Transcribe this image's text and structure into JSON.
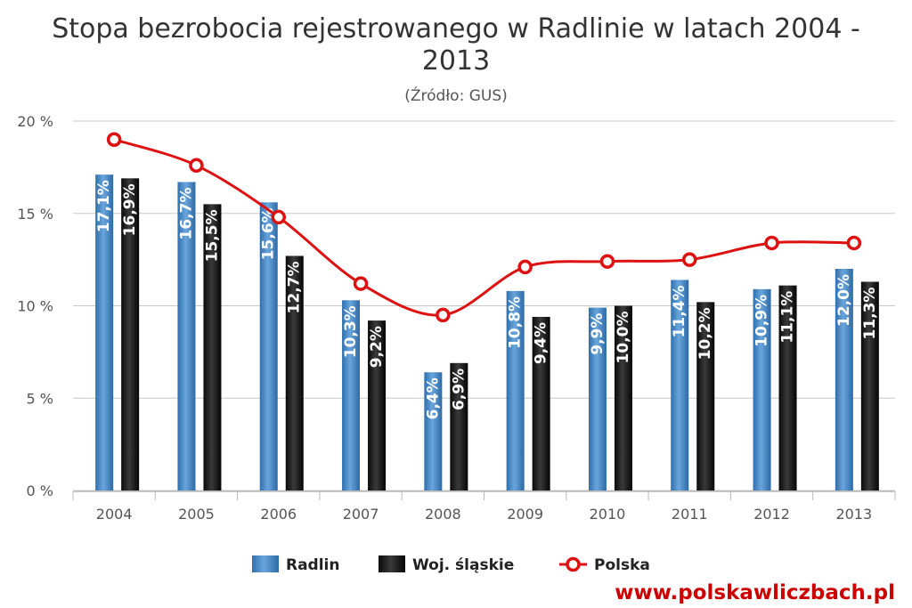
{
  "chart_data": {
    "type": "bar",
    "title_line1": "Stopa bezrobocia rejestrowanego w Radlinie w latach 2004 -",
    "title_line2": "2013",
    "subtitle": "(Źródło: GUS)",
    "categories": [
      "2004",
      "2005",
      "2006",
      "2007",
      "2008",
      "2009",
      "2010",
      "2011",
      "2012",
      "2013"
    ],
    "ylim": [
      0,
      20
    ],
    "yticks": [
      {
        "value": 0,
        "label": "0 %"
      },
      {
        "value": 5,
        "label": "5 %"
      },
      {
        "value": 10,
        "label": "10 %"
      },
      {
        "value": 15,
        "label": "15 %"
      },
      {
        "value": 20,
        "label": "20 %"
      }
    ],
    "grid": true,
    "legend_position": "bottom-center",
    "series": [
      {
        "name": "Radlin",
        "kind": "bar",
        "color": "#4a88c7",
        "values": [
          17.1,
          16.7,
          15.6,
          10.3,
          6.4,
          10.8,
          9.9,
          11.4,
          10.9,
          12.0
        ],
        "labels": [
          "17,1%",
          "16,7%",
          "15,6%",
          "10,3%",
          "6,4%",
          "10,8%",
          "9,9%",
          "11,4%",
          "10,9%",
          "12,0%"
        ]
      },
      {
        "name": "Woj. śląskie",
        "kind": "bar",
        "color": "#1a1a1a",
        "values": [
          16.9,
          15.5,
          12.7,
          9.2,
          6.9,
          9.4,
          10.0,
          10.2,
          11.1,
          11.3
        ],
        "labels": [
          "16,9%",
          "15,5%",
          "12,7%",
          "9,2%",
          "6,9%",
          "9,4%",
          "10,0%",
          "10,2%",
          "11,1%",
          "11,3%"
        ]
      },
      {
        "name": "Polska",
        "kind": "line",
        "color": "#dd1111",
        "values": [
          19.0,
          17.6,
          14.8,
          11.2,
          9.5,
          12.1,
          12.4,
          12.5,
          13.4,
          13.4
        ]
      }
    ]
  },
  "watermark": "www.polskawliczbach.pl"
}
